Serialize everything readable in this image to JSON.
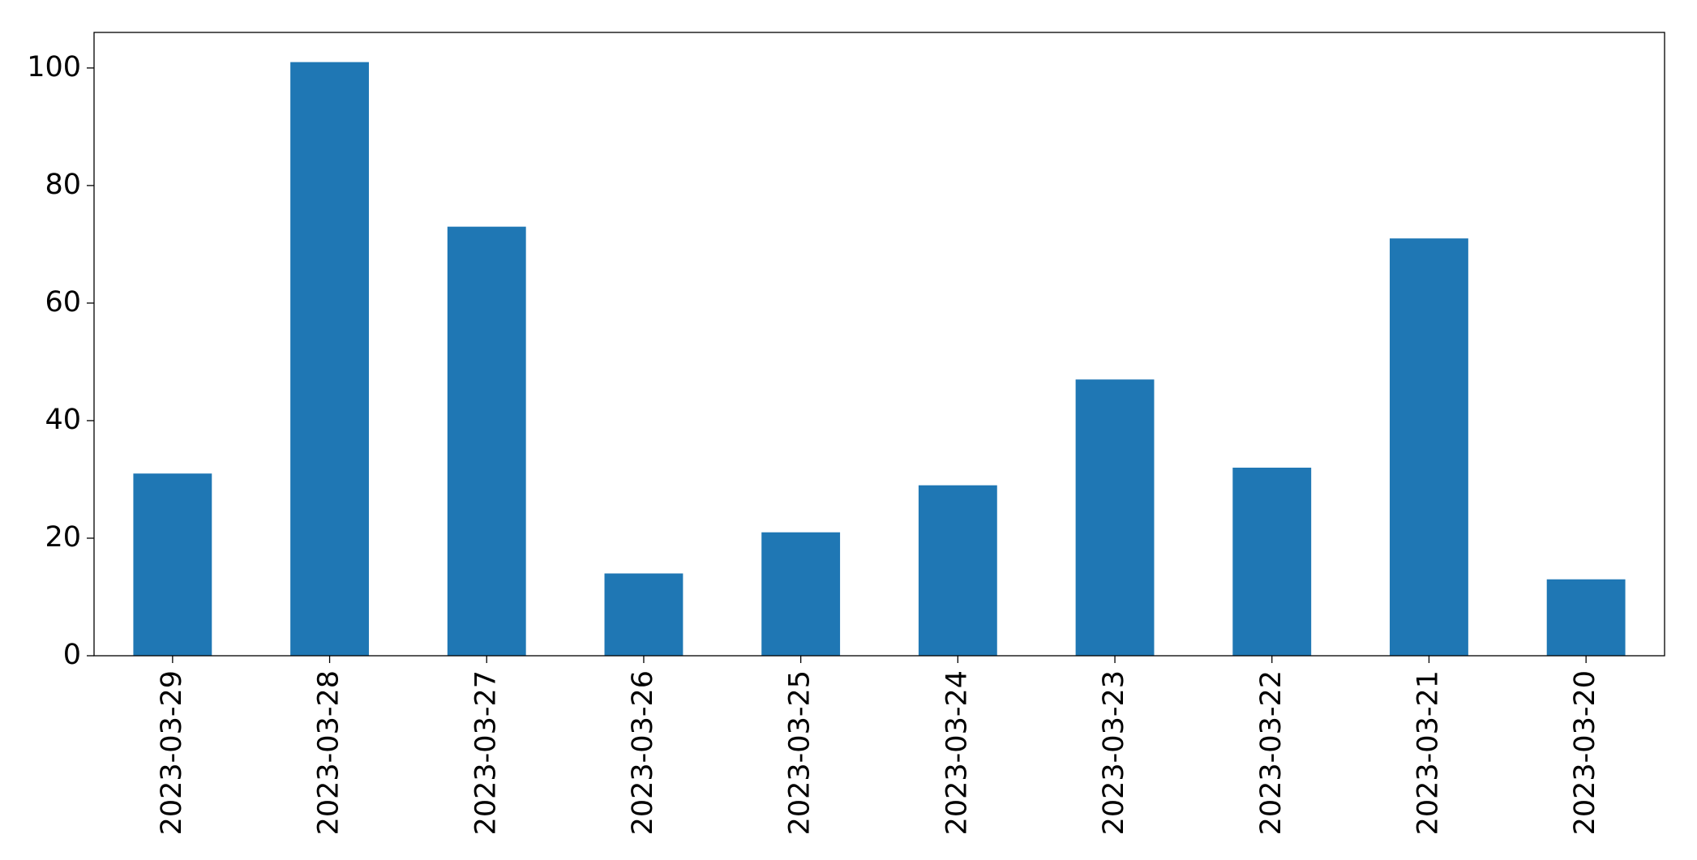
{
  "chart_data": {
    "type": "bar",
    "categories": [
      "2023-03-29",
      "2023-03-28",
      "2023-03-27",
      "2023-03-26",
      "2023-03-25",
      "2023-03-24",
      "2023-03-23",
      "2023-03-22",
      "2023-03-21",
      "2023-03-20"
    ],
    "values": [
      31,
      101,
      73,
      14,
      21,
      29,
      47,
      32,
      71,
      13
    ],
    "color": "#1f77b4",
    "ylim": [
      0,
      106.05
    ],
    "yticks": [
      0,
      20,
      40,
      60,
      80,
      100
    ],
    "grid": false
  }
}
